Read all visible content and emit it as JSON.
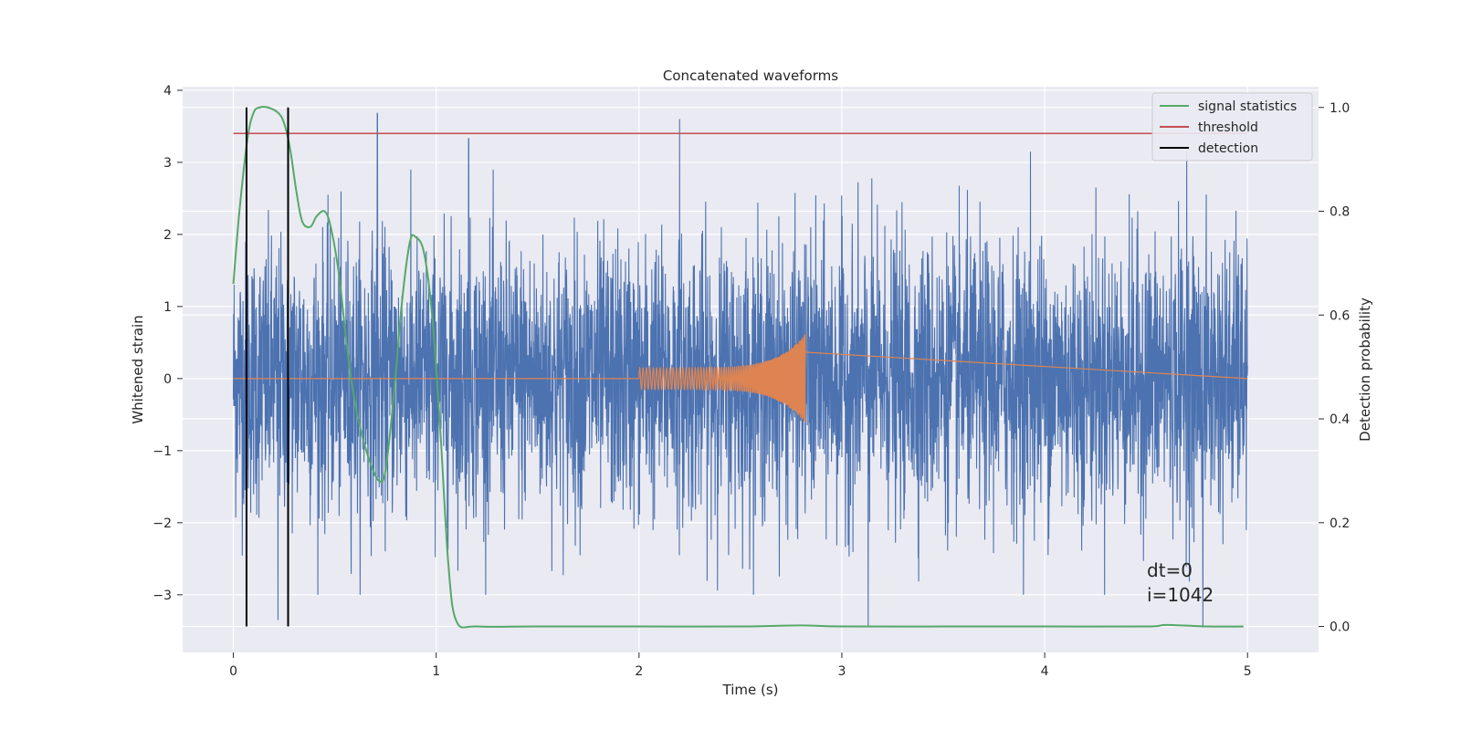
{
  "chart_data": {
    "type": "line",
    "title": "Concatenated waveforms",
    "xlabel": "Time (s)",
    "ylabel": "Whitened strain",
    "ylabel_right": "Detection probability",
    "xlim": [
      -0.25,
      5.35
    ],
    "ylim": [
      -3.8,
      4.05
    ],
    "ylim_right": [
      -0.05,
      1.04
    ],
    "xticks": [
      0,
      1,
      2,
      3,
      4,
      5
    ],
    "yticks": [
      -3,
      -2,
      -1,
      0,
      1,
      2,
      3,
      4
    ],
    "yticks_right": [
      0.0,
      0.2,
      0.4,
      0.6,
      0.8,
      1.0
    ],
    "xtick_labels": [
      "0",
      "1",
      "2",
      "3",
      "4",
      "5"
    ],
    "ytick_labels": [
      "−3",
      "−2",
      "−1",
      "0",
      "1",
      "2",
      "3",
      "4"
    ],
    "ytick_labels_right": [
      "0.0",
      "0.2",
      "0.4",
      "0.6",
      "0.8",
      "1.0"
    ],
    "grid": true,
    "legend_position": "top-right",
    "noise": {
      "color": "#4c72b0",
      "x_range": [
        0,
        5
      ],
      "typical_amplitude": 1.2,
      "peaks": [
        {
          "x": 0.71,
          "y": 3.68
        },
        {
          "x": 1.16,
          "y": 3.33
        },
        {
          "x": 2.2,
          "y": 3.6
        },
        {
          "x": 3.93,
          "y": 3.15
        },
        {
          "x": 4.7,
          "y": 3.15
        },
        {
          "x": 4.78,
          "y": -3.45
        },
        {
          "x": 3.13,
          "y": -3.45
        },
        {
          "x": 0.22,
          "y": -3.35
        },
        {
          "x": 0.27,
          "y": -2.6
        }
      ]
    },
    "injection": {
      "color": "#dd8452",
      "x_start": 2.0,
      "x_end": 2.82,
      "amplitude_start": 0.15,
      "amplitude_peak": 0.62,
      "baseline": 0
    },
    "series": [
      {
        "name": "signal statistics",
        "color": "#55a868",
        "axis": "right",
        "x": [
          0.0,
          0.03,
          0.07,
          0.1,
          0.13,
          0.17,
          0.22,
          0.25,
          0.28,
          0.31,
          0.34,
          0.38,
          0.41,
          0.45,
          0.48,
          0.52,
          0.56,
          0.6,
          0.64,
          0.68,
          0.72,
          0.75,
          0.79,
          0.83,
          0.87,
          0.9,
          0.94,
          0.98,
          1.02,
          1.06,
          1.1,
          1.2,
          1.5,
          2.0,
          2.5,
          2.8,
          3.0,
          3.5,
          4.0,
          4.5,
          4.6,
          4.8,
          4.98
        ],
        "y": [
          0.66,
          0.8,
          0.94,
          0.99,
          1.0,
          1.0,
          0.99,
          0.97,
          0.92,
          0.84,
          0.78,
          0.77,
          0.79,
          0.8,
          0.77,
          0.68,
          0.54,
          0.43,
          0.36,
          0.31,
          0.28,
          0.3,
          0.44,
          0.62,
          0.74,
          0.75,
          0.72,
          0.6,
          0.38,
          0.12,
          0.01,
          0.0,
          0.0,
          0.0,
          0.0,
          0.002,
          0.0,
          0.0,
          0.0,
          0.0,
          0.003,
          0.0,
          0.0
        ]
      },
      {
        "name": "threshold",
        "color": "#c44e52",
        "axis": "right",
        "x": [
          0,
          5
        ],
        "y": [
          0.95,
          0.95
        ]
      },
      {
        "name": "detection",
        "color": "#000000",
        "axis": "right",
        "x_vlines": [
          0.065,
          0.27
        ],
        "y_range": [
          0.0,
          1.0
        ]
      }
    ],
    "annotations": {
      "dt": "dt=0",
      "i": "i=1042"
    }
  }
}
